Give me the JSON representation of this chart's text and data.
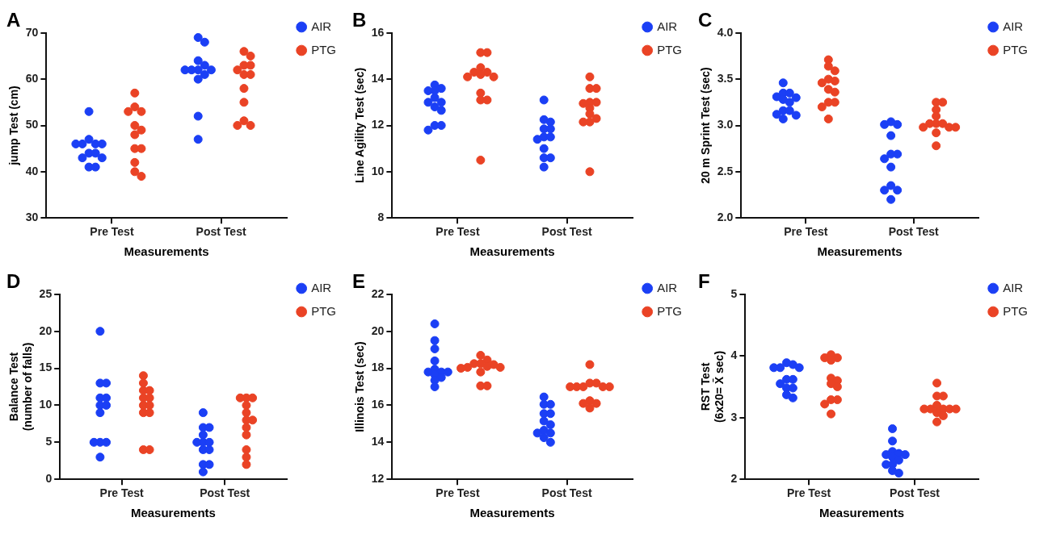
{
  "chart_data": [
    {
      "type": "scatter",
      "title": "A",
      "xlabel": "Measurements",
      "ylabel": "jump Test (cm)",
      "categories": [
        "Pre Test",
        "Post Test"
      ],
      "ylim": [
        30,
        70
      ],
      "yticks": [
        30,
        40,
        50,
        60,
        70
      ],
      "legend": "right",
      "marker": "circle",
      "series": [
        {
          "name": "AIR",
          "color": "#1b3ff5",
          "x": [
            "Pre Test",
            "Pre Test",
            "Pre Test",
            "Pre Test",
            "Pre Test",
            "Pre Test",
            "Pre Test",
            "Pre Test",
            "Pre Test",
            "Pre Test",
            "Pre Test",
            "Pre Test",
            "Post Test",
            "Post Test",
            "Post Test",
            "Post Test",
            "Post Test",
            "Post Test",
            "Post Test",
            "Post Test",
            "Post Test",
            "Post Test",
            "Post Test",
            "Post Test"
          ],
          "values": [
            53,
            47,
            46,
            46,
            46,
            46,
            44,
            44,
            43,
            43,
            41,
            41,
            69,
            68,
            64,
            63,
            62,
            62,
            62,
            62,
            61,
            60,
            52,
            47
          ]
        },
        {
          "name": "PTG",
          "color": "#ea4325",
          "x": [
            "Pre Test",
            "Pre Test",
            "Pre Test",
            "Pre Test",
            "Pre Test",
            "Pre Test",
            "Pre Test",
            "Pre Test",
            "Pre Test",
            "Pre Test",
            "Pre Test",
            "Pre Test",
            "Post Test",
            "Post Test",
            "Post Test",
            "Post Test",
            "Post Test",
            "Post Test",
            "Post Test",
            "Post Test",
            "Post Test",
            "Post Test",
            "Post Test",
            "Post Test"
          ],
          "values": [
            57,
            54,
            53,
            53,
            50,
            49,
            48,
            45,
            45,
            42,
            40,
            39,
            66,
            65,
            63,
            63,
            62,
            61,
            61,
            58,
            55,
            51,
            50,
            50
          ]
        }
      ]
    },
    {
      "type": "scatter",
      "title": "B",
      "xlabel": "Measurements",
      "ylabel": "Line Agility Test (sec)",
      "categories": [
        "Pre Test",
        "Post Test"
      ],
      "ylim": [
        8,
        16
      ],
      "yticks": [
        8,
        10,
        12,
        14,
        16
      ],
      "legend": "right",
      "marker": "circle",
      "series": [
        {
          "name": "AIR",
          "color": "#1b3ff5",
          "x": [
            "Pre Test",
            "Pre Test",
            "Pre Test",
            "Pre Test",
            "Pre Test",
            "Pre Test",
            "Pre Test",
            "Pre Test",
            "Pre Test",
            "Pre Test",
            "Pre Test",
            "Pre Test",
            "Post Test",
            "Post Test",
            "Post Test",
            "Post Test",
            "Post Test",
            "Post Test",
            "Post Test",
            "Post Test",
            "Post Test",
            "Post Test",
            "Post Test",
            "Post Test"
          ],
          "values": [
            13.75,
            13.6,
            13.5,
            13.5,
            13.2,
            13,
            13,
            12.8,
            12.65,
            12,
            12,
            11.8,
            13.1,
            12.25,
            12.15,
            11.85,
            11.85,
            11.5,
            11.5,
            11.4,
            11,
            10.6,
            10.6,
            10.2
          ]
        },
        {
          "name": "PTG",
          "color": "#ea4325",
          "x": [
            "Pre Test",
            "Pre Test",
            "Pre Test",
            "Pre Test",
            "Pre Test",
            "Pre Test",
            "Pre Test",
            "Pre Test",
            "Pre Test",
            "Pre Test",
            "Pre Test",
            "Pre Test",
            "Post Test",
            "Post Test",
            "Post Test",
            "Post Test",
            "Post Test",
            "Post Test",
            "Post Test",
            "Post Test",
            "Post Test",
            "Post Test",
            "Post Test",
            "Post Test"
          ],
          "values": [
            15.15,
            15.15,
            14.5,
            14.3,
            14.3,
            14.2,
            14.1,
            14.1,
            13.4,
            13.1,
            13.1,
            10.5,
            14.1,
            13.6,
            13.6,
            13,
            13,
            12.95,
            12.75,
            12.5,
            12.3,
            12.15,
            12.15,
            10
          ]
        }
      ]
    },
    {
      "type": "scatter",
      "title": "C",
      "xlabel": "Measurements",
      "ylabel": "20 m Sprint Test (sec)",
      "categories": [
        "Pre Test",
        "Post Test"
      ],
      "ylim": [
        2,
        4
      ],
      "yticks": [
        {
          "value": 2,
          "label": "2.0"
        },
        {
          "value": 2.5,
          "label": "2.5"
        },
        {
          "value": 3,
          "label": "3.0"
        },
        {
          "value": 3.5,
          "label": "3.5"
        },
        {
          "value": 4,
          "label": "4.0"
        }
      ],
      "legend": "right",
      "marker": "circle",
      "series": [
        {
          "name": "AIR",
          "color": "#1b3ff5",
          "x": [
            "Pre Test",
            "Pre Test",
            "Pre Test",
            "Pre Test",
            "Pre Test",
            "Pre Test",
            "Pre Test",
            "Pre Test",
            "Pre Test",
            "Pre Test",
            "Pre Test",
            "Pre Test",
            "Post Test",
            "Post Test",
            "Post Test",
            "Post Test",
            "Post Test",
            "Post Test",
            "Post Test",
            "Post Test",
            "Post Test",
            "Post Test",
            "Post Test",
            "Post Test"
          ],
          "values": [
            3.46,
            3.35,
            3.35,
            3.31,
            3.3,
            3.28,
            3.25,
            3.16,
            3.16,
            3.12,
            3.11,
            3.07,
            3.04,
            3.01,
            3.01,
            2.89,
            2.69,
            2.69,
            2.64,
            2.55,
            2.35,
            2.3,
            2.3,
            2.2
          ]
        },
        {
          "name": "PTG",
          "color": "#ea4325",
          "x": [
            "Pre Test",
            "Pre Test",
            "Pre Test",
            "Pre Test",
            "Pre Test",
            "Pre Test",
            "Pre Test",
            "Pre Test",
            "Pre Test",
            "Pre Test",
            "Pre Test",
            "Pre Test",
            "Post Test",
            "Post Test",
            "Post Test",
            "Post Test",
            "Post Test",
            "Post Test",
            "Post Test",
            "Post Test",
            "Post Test",
            "Post Test",
            "Post Test",
            "Post Test"
          ],
          "values": [
            3.71,
            3.64,
            3.59,
            3.5,
            3.48,
            3.46,
            3.39,
            3.36,
            3.25,
            3.25,
            3.2,
            3.07,
            3.25,
            3.25,
            3.17,
            3.1,
            3.02,
            3.02,
            3.02,
            2.98,
            2.98,
            2.98,
            2.92,
            2.78
          ]
        }
      ]
    },
    {
      "type": "scatter",
      "title": "D",
      "xlabel": "Measurements",
      "ylabel": "Balance Test\n(number of falls)",
      "categories": [
        "Pre Test",
        "Post Test"
      ],
      "ylim": [
        0,
        25
      ],
      "yticks": [
        0,
        5,
        10,
        15,
        20,
        25
      ],
      "legend": "right",
      "marker": "circle",
      "series": [
        {
          "name": "AIR",
          "color": "#1b3ff5",
          "x": [
            "Pre Test",
            "Pre Test",
            "Pre Test",
            "Pre Test",
            "Pre Test",
            "Pre Test",
            "Pre Test",
            "Pre Test",
            "Pre Test",
            "Pre Test",
            "Pre Test",
            "Pre Test",
            "Post Test",
            "Post Test",
            "Post Test",
            "Post Test",
            "Post Test",
            "Post Test",
            "Post Test",
            "Post Test",
            "Post Test",
            "Post Test",
            "Post Test",
            "Post Test"
          ],
          "values": [
            20,
            13,
            13,
            11,
            11,
            10,
            10,
            9,
            5,
            5,
            5,
            3,
            9,
            7,
            7,
            6,
            5,
            5,
            5,
            4,
            4,
            2,
            2,
            1
          ]
        },
        {
          "name": "PTG",
          "color": "#ea4325",
          "x": [
            "Pre Test",
            "Pre Test",
            "Pre Test",
            "Pre Test",
            "Pre Test",
            "Pre Test",
            "Pre Test",
            "Pre Test",
            "Pre Test",
            "Pre Test",
            "Pre Test",
            "Pre Test",
            "Post Test",
            "Post Test",
            "Post Test",
            "Post Test",
            "Post Test",
            "Post Test",
            "Post Test",
            "Post Test",
            "Post Test",
            "Post Test",
            "Post Test",
            "Post Test"
          ],
          "values": [
            14,
            13,
            12,
            12,
            11,
            11,
            10,
            10,
            9,
            9,
            4,
            4,
            11,
            11,
            11,
            10,
            9,
            8,
            8,
            7,
            6,
            4,
            3,
            2
          ]
        }
      ]
    },
    {
      "type": "scatter",
      "title": "E",
      "xlabel": "Measurements",
      "ylabel": "Illinois Test (sec)",
      "categories": [
        "Pre Test",
        "Post Test"
      ],
      "ylim": [
        12,
        22
      ],
      "yticks": [
        12,
        14,
        16,
        18,
        20,
        22
      ],
      "legend": "right",
      "marker": "circle",
      "series": [
        {
          "name": "AIR",
          "color": "#1b3ff5",
          "x": [
            "Pre Test",
            "Pre Test",
            "Pre Test",
            "Pre Test",
            "Pre Test",
            "Pre Test",
            "Pre Test",
            "Pre Test",
            "Pre Test",
            "Pre Test",
            "Pre Test",
            "Pre Test",
            "Post Test",
            "Post Test",
            "Post Test",
            "Post Test",
            "Post Test",
            "Post Test",
            "Post Test",
            "Post Test",
            "Post Test",
            "Post Test",
            "Post Test",
            "Post Test"
          ],
          "values": [
            20.4,
            19.5,
            19.05,
            18.4,
            17.95,
            17.8,
            17.8,
            17.8,
            17.65,
            17.5,
            17.35,
            17,
            16.45,
            16.05,
            16.05,
            15.55,
            15.55,
            15.15,
            14.95,
            14.65,
            14.5,
            14.5,
            14.25,
            14
          ]
        },
        {
          "name": "PTG",
          "color": "#ea4325",
          "x": [
            "Pre Test",
            "Pre Test",
            "Pre Test",
            "Pre Test",
            "Pre Test",
            "Pre Test",
            "Pre Test",
            "Pre Test",
            "Pre Test",
            "Pre Test",
            "Pre Test",
            "Pre Test",
            "Post Test",
            "Post Test",
            "Post Test",
            "Post Test",
            "Post Test",
            "Post Test",
            "Post Test",
            "Post Test",
            "Post Test",
            "Post Test",
            "Post Test",
            "Post Test"
          ],
          "values": [
            18.7,
            18.45,
            18.25,
            18.25,
            18.2,
            18.1,
            18.05,
            18.05,
            18,
            17.8,
            17.05,
            17.05,
            18.2,
            17.2,
            17.2,
            17,
            17,
            17,
            17,
            17,
            16.25,
            16.1,
            16.1,
            15.85
          ]
        }
      ]
    },
    {
      "type": "scatter",
      "title": "F",
      "xlabel": "Measurements",
      "ylabel": "RST Test\n(6x20= X̄ sec)",
      "categories": [
        "Pre Test",
        "Post Test"
      ],
      "ylim": [
        2,
        5
      ],
      "yticks": [
        2,
        3,
        4,
        5
      ],
      "legend": "right",
      "marker": "circle",
      "series": [
        {
          "name": "AIR",
          "color": "#1b3ff5",
          "x": [
            "Pre Test",
            "Pre Test",
            "Pre Test",
            "Pre Test",
            "Pre Test",
            "Pre Test",
            "Pre Test",
            "Pre Test",
            "Pre Test",
            "Pre Test",
            "Pre Test",
            "Pre Test",
            "Post Test",
            "Post Test",
            "Post Test",
            "Post Test",
            "Post Test",
            "Post Test",
            "Post Test",
            "Post Test",
            "Post Test",
            "Post Test",
            "Post Test",
            "Post Test"
          ],
          "values": [
            3.89,
            3.86,
            3.81,
            3.81,
            3.81,
            3.62,
            3.62,
            3.55,
            3.48,
            3.48,
            3.37,
            3.32,
            2.82,
            2.62,
            2.45,
            2.42,
            2.4,
            2.4,
            2.36,
            2.31,
            2.24,
            2.24,
            2.14,
            2.1
          ]
        },
        {
          "name": "PTG",
          "color": "#ea4325",
          "x": [
            "Pre Test",
            "Pre Test",
            "Pre Test",
            "Pre Test",
            "Pre Test",
            "Pre Test",
            "Pre Test",
            "Pre Test",
            "Pre Test",
            "Pre Test",
            "Pre Test",
            "Pre Test",
            "Post Test",
            "Post Test",
            "Post Test",
            "Post Test",
            "Post Test",
            "Post Test",
            "Post Test",
            "Post Test",
            "Post Test",
            "Post Test",
            "Post Test",
            "Post Test"
          ],
          "values": [
            4.02,
            3.97,
            3.97,
            3.93,
            3.64,
            3.6,
            3.55,
            3.5,
            3.29,
            3.29,
            3.22,
            3.06,
            3.56,
            3.35,
            3.35,
            3.2,
            3.14,
            3.14,
            3.14,
            3.14,
            3.14,
            3.08,
            3.03,
            2.93
          ]
        }
      ]
    }
  ]
}
